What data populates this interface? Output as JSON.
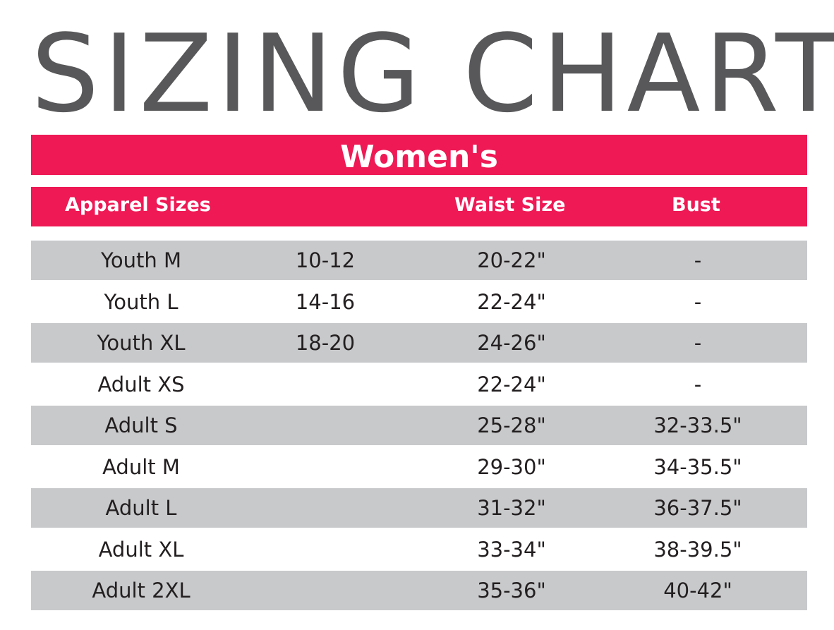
{
  "title": "SIZING CHART",
  "section": "Women's",
  "header": {
    "apparel_sizes": "Apparel Sizes",
    "waist_size": "Waist Size",
    "bust": "Bust"
  },
  "colors": {
    "title": "#58585a",
    "accent": "#ee1955",
    "row_shade": "#c8c9cb",
    "text": "#231f20"
  },
  "rows": [
    {
      "apparel": "Youth M",
      "numeric": "10-12",
      "waist": "20-22\"",
      "bust": "-"
    },
    {
      "apparel": "Youth L",
      "numeric": "14-16",
      "waist": "22-24\"",
      "bust": "-"
    },
    {
      "apparel": "Youth XL",
      "numeric": "18-20",
      "waist": "24-26\"",
      "bust": "-"
    },
    {
      "apparel": "Adult XS",
      "numeric": "",
      "waist": "22-24\"",
      "bust": "-"
    },
    {
      "apparel": "Adult S",
      "numeric": "",
      "waist": "25-28\"",
      "bust": "32-33.5\""
    },
    {
      "apparel": "Adult M",
      "numeric": "",
      "waist": "29-30\"",
      "bust": "34-35.5\""
    },
    {
      "apparel": "Adult L",
      "numeric": "",
      "waist": "31-32\"",
      "bust": "36-37.5\""
    },
    {
      "apparel": "Adult XL",
      "numeric": "",
      "waist": "33-34\"",
      "bust": "38-39.5\""
    },
    {
      "apparel": "Adult 2XL",
      "numeric": "",
      "waist": "35-36\"",
      "bust": "40-42\""
    }
  ]
}
